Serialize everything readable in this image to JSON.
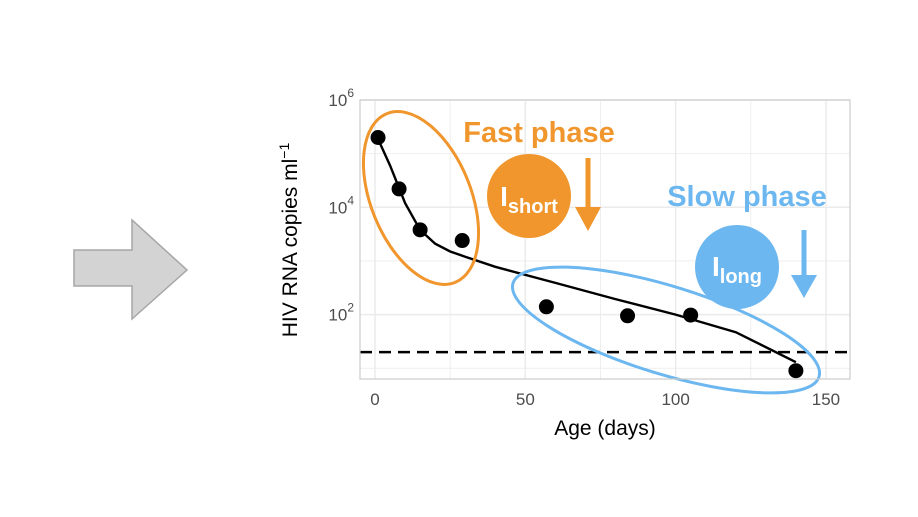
{
  "colors": {
    "fast": "#f0962d",
    "slow": "#6cb7f0",
    "arrow_fill": "#d3d3d3",
    "arrow_stroke": "#a6a6a6",
    "grid": "#ebebeb",
    "panel_border": "#cccccc",
    "ink": "#000000"
  },
  "icons": {
    "left_arrow": "right-arrow-icon",
    "fast_arrow": "down-arrow-icon",
    "slow_arrow": "down-arrow-icon"
  },
  "chart_data": {
    "type": "scatter",
    "xlabel": "Age (days)",
    "ylabel": "HIV RNA copies ml",
    "ylabel_superscript": "−1",
    "xlim": [
      -5,
      158
    ],
    "ylim_log10": [
      0.8,
      6.0
    ],
    "y_scale": "log10",
    "grid": true,
    "x_ticks": [
      {
        "value": 0,
        "label": "0"
      },
      {
        "value": 50,
        "label": "50"
      },
      {
        "value": 100,
        "label": "100"
      },
      {
        "value": 150,
        "label": "150"
      }
    ],
    "y_ticks": [
      {
        "value": 100,
        "base": "10",
        "exp": "2"
      },
      {
        "value": 10000,
        "base": "10",
        "exp": "4"
      },
      {
        "value": 1000000,
        "base": "10",
        "exp": "6"
      }
    ],
    "points": [
      {
        "x": 1,
        "y": 200000
      },
      {
        "x": 8,
        "y": 22000
      },
      {
        "x": 15,
        "y": 3800
      },
      {
        "x": 29,
        "y": 2400
      },
      {
        "x": 57,
        "y": 140
      },
      {
        "x": 84,
        "y": 95
      },
      {
        "x": 105,
        "y": 98
      },
      {
        "x": 140,
        "y": 9
      }
    ],
    "fit_curve": [
      {
        "x": 0,
        "y": 250000
      },
      {
        "x": 5,
        "y": 60000
      },
      {
        "x": 10,
        "y": 12000
      },
      {
        "x": 15,
        "y": 3800
      },
      {
        "x": 20,
        "y": 2100
      },
      {
        "x": 25,
        "y": 1500
      },
      {
        "x": 30,
        "y": 1200
      },
      {
        "x": 40,
        "y": 780
      },
      {
        "x": 60,
        "y": 390
      },
      {
        "x": 80,
        "y": 195
      },
      {
        "x": 100,
        "y": 100
      },
      {
        "x": 120,
        "y": 47
      },
      {
        "x": 140,
        "y": 13
      }
    ],
    "threshold_y": 20,
    "fast_phase": {
      "label": "Fast phase",
      "badge_main": "I",
      "badge_sub": "short"
    },
    "slow_phase": {
      "label": "Slow phase",
      "badge_main": "I",
      "badge_sub": "long"
    }
  }
}
